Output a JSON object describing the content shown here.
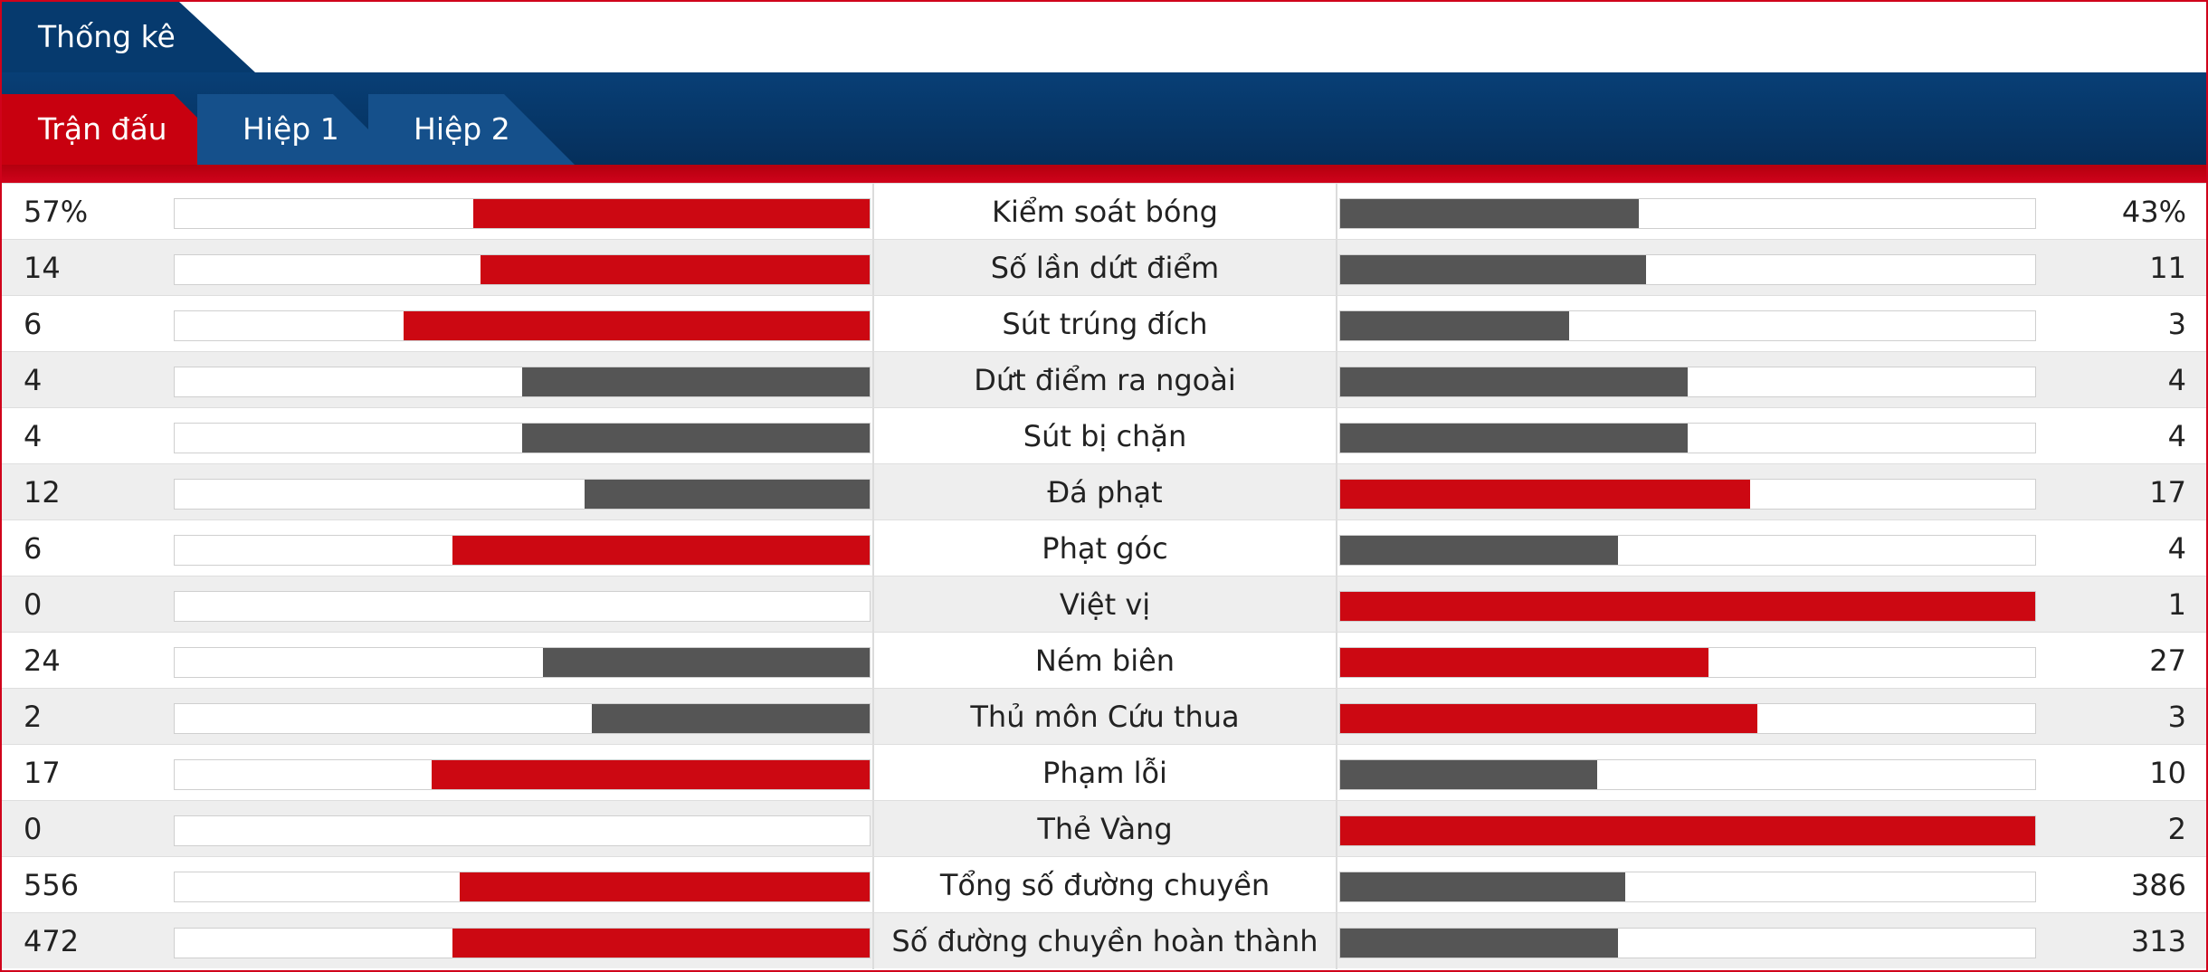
{
  "header": {
    "title": "Thống kê"
  },
  "tabs": [
    {
      "label": "Trận đấu",
      "active": true
    },
    {
      "label": "Hiệp 1",
      "active": false
    },
    {
      "label": "Hiệp 2",
      "active": false
    }
  ],
  "colors": {
    "leading": "#cc0812",
    "trailing": "#555555",
    "header_bg": "#063a6e",
    "accent": "#d0021b"
  },
  "stats": [
    {
      "label": "Kiểm soát bóng",
      "home": "57%",
      "away": "43%",
      "home_share": 0.57,
      "away_share": 0.43
    },
    {
      "label": "Số lần dứt điểm",
      "home": "14",
      "away": "11",
      "home_share": 0.56,
      "away_share": 0.44
    },
    {
      "label": "Sút trúng đích",
      "home": "6",
      "away": "3",
      "home_share": 0.67,
      "away_share": 0.33
    },
    {
      "label": "Dứt điểm ra ngoài",
      "home": "4",
      "away": "4",
      "home_share": 0.5,
      "away_share": 0.5
    },
    {
      "label": "Sút bị chặn",
      "home": "4",
      "away": "4",
      "home_share": 0.5,
      "away_share": 0.5
    },
    {
      "label": "Đá phạt",
      "home": "12",
      "away": "17",
      "home_share": 0.41,
      "away_share": 0.59
    },
    {
      "label": "Phạt góc",
      "home": "6",
      "away": "4",
      "home_share": 0.6,
      "away_share": 0.4
    },
    {
      "label": "Việt vị",
      "home": "0",
      "away": "1",
      "home_share": 0,
      "away_share": 1
    },
    {
      "label": "Ném biên",
      "home": "24",
      "away": "27",
      "home_share": 0.47,
      "away_share": 0.53
    },
    {
      "label": "Thủ môn Cứu thua",
      "home": "2",
      "away": "3",
      "home_share": 0.4,
      "away_share": 0.6
    },
    {
      "label": "Phạm lỗi",
      "home": "17",
      "away": "10",
      "home_share": 0.63,
      "away_share": 0.37
    },
    {
      "label": "Thẻ Vàng",
      "home": "0",
      "away": "2",
      "home_share": 0,
      "away_share": 1
    },
    {
      "label": "Tổng số đường chuyền",
      "home": "556",
      "away": "386",
      "home_share": 0.59,
      "away_share": 0.41
    },
    {
      "label": "Số đường chuyền hoàn thành",
      "home": "472",
      "away": "313",
      "home_share": 0.6,
      "away_share": 0.4
    }
  ]
}
